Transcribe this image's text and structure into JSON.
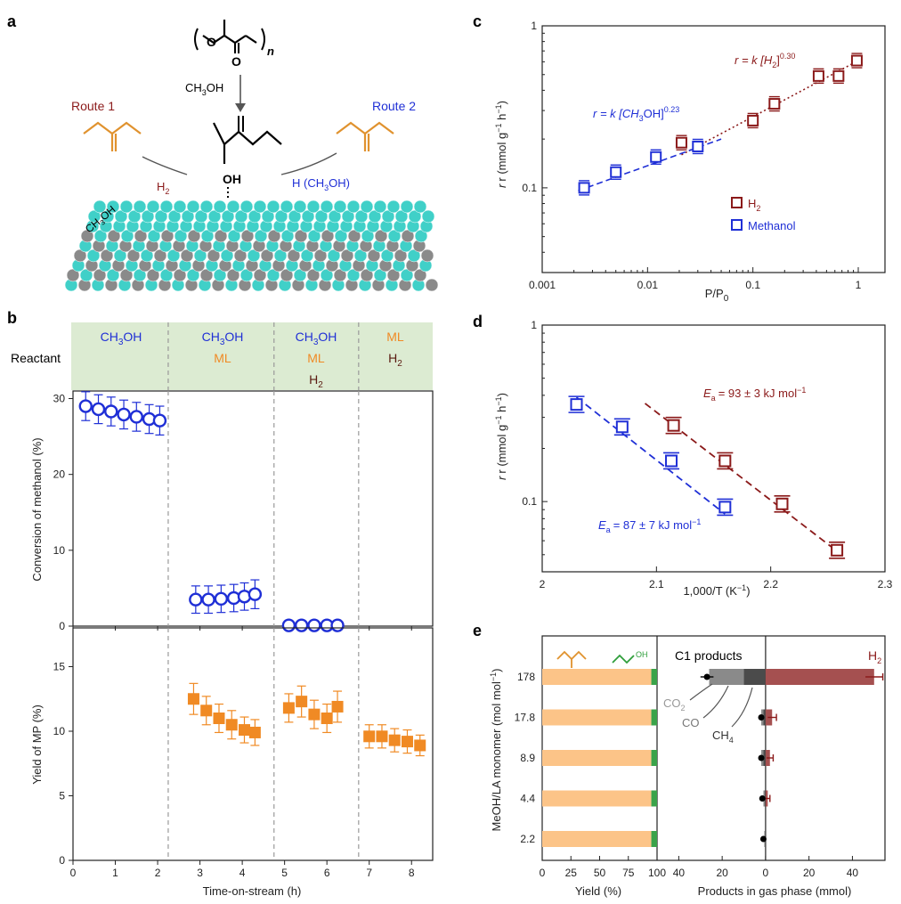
{
  "panels": {
    "a": {
      "letter": "a",
      "route1": "Route 1",
      "route2": "Route 2",
      "ch3oh": "CH",
      "h2": "H",
      "h_ch3oh": "H (CH",
      "oh": "OH",
      "o": "O",
      "n": "n",
      "colors": {
        "route1": "#8b1a1a",
        "route2": "#1f2fd6",
        "ester": "#e0922e",
        "surface": "#40d0c8",
        "atom": "#8a8a8a"
      }
    },
    "b": {
      "letter": "b",
      "reactant_label": "Reactant",
      "reactant_groups": [
        {
          "lines": [
            "CH3OH"
          ]
        },
        {
          "lines": [
            "CH3OH",
            "ML"
          ]
        },
        {
          "lines": [
            "CH3OH",
            "ML",
            "H2"
          ]
        },
        {
          "lines": [
            "ML",
            "H2"
          ]
        }
      ],
      "top_ylabel": "Conversion of methanol (%)",
      "bottom_ylabel": "Yield of MP (%)",
      "xlabel": "Time-on-stream (h)"
    },
    "c": {
      "letter": "c",
      "xlabel": "P/P",
      "xlabel_sub": "0",
      "ylabel": "r (mmol g",
      "eq_h2": "r = k [H",
      "eq_h2_exp": "0.30",
      "eq_meoh": "r = k [CH",
      "eq_meoh_exp": "0.23",
      "legend": [
        "H2",
        "Methanol"
      ]
    },
    "d": {
      "letter": "d",
      "xlabel": "1,000/T (K",
      "ylabel": "r (mmol g",
      "ea_h2": "= 93 ± 3 kJ mol",
      "ea_meoh": "= 87 ± 7 kJ mol"
    },
    "e": {
      "letter": "e",
      "ylabel": "MeOH/LA monomer (mol mol",
      "xlabel_left": "Yield (%)",
      "xlabel_right": "Products in gas phase (mmol)",
      "c1_label": "C1 products",
      "h2_label": "H",
      "co2_label": "CO",
      "co_label": "CO",
      "ch4_label": "CH"
    }
  },
  "chart_data": [
    {
      "id": "b-top",
      "type": "scatter",
      "ylabel": "Conversion of methanol (%)",
      "xlim": [
        0,
        8.5
      ],
      "ylim": [
        0,
        31
      ],
      "xticks": [
        0,
        1,
        2,
        3,
        4,
        5,
        6,
        7,
        8
      ],
      "yticks": [
        0,
        10,
        20,
        30
      ],
      "phase_dividers": [
        2.25,
        4.75,
        6.75
      ],
      "series": [
        {
          "color": "#1f2fd6",
          "x": [
            0.3,
            0.6,
            0.9,
            1.2,
            1.5,
            1.8,
            2.05,
            2.9,
            3.2,
            3.5,
            3.8,
            4.05,
            4.3,
            5.1,
            5.4,
            5.7,
            6.0,
            6.25
          ],
          "y": [
            29,
            28.6,
            28.3,
            27.9,
            27.6,
            27.3,
            27.1,
            3.5,
            3.5,
            3.6,
            3.7,
            3.9,
            4.2,
            0.1,
            0.1,
            0.1,
            0.1,
            0.1
          ],
          "err": [
            1.9,
            1.9,
            1.9,
            1.9,
            1.9,
            1.9,
            1.9,
            1.8,
            1.8,
            1.8,
            1.8,
            1.8,
            1.9,
            0,
            0,
            0,
            0,
            0
          ]
        }
      ]
    },
    {
      "id": "b-bottom",
      "type": "scatter",
      "ylabel": "Yield of MP (%)",
      "xlabel": "Time-on-stream (h)",
      "xlim": [
        0,
        8.5
      ],
      "ylim": [
        0,
        18
      ],
      "xticks": [
        0,
        1,
        2,
        3,
        4,
        5,
        6,
        7,
        8
      ],
      "yticks": [
        0,
        5,
        10,
        15
      ],
      "series": [
        {
          "color": "#f08a24",
          "x": [
            2.85,
            3.15,
            3.45,
            3.75,
            4.05,
            4.3,
            5.1,
            5.4,
            5.7,
            6.0,
            6.25,
            7.0,
            7.3,
            7.6,
            7.9,
            8.2
          ],
          "y": [
            12.5,
            11.6,
            11.0,
            10.5,
            10.1,
            9.9,
            11.8,
            12.3,
            11.3,
            11.0,
            11.9,
            9.6,
            9.6,
            9.3,
            9.2,
            8.9
          ],
          "err": [
            1.2,
            1.1,
            1.1,
            1.1,
            1.0,
            1.0,
            1.1,
            1.2,
            1.1,
            1.1,
            1.2,
            0.9,
            0.9,
            0.9,
            0.9,
            0.8
          ]
        }
      ]
    },
    {
      "id": "c",
      "type": "scatter",
      "xscale": "log",
      "yscale": "log",
      "xlabel": "P/P0",
      "xlim": [
        0.001,
        1
      ],
      "ylim": [
        0.03,
        1
      ],
      "xticks": [
        "0.001",
        "0.01",
        "0.1",
        "1"
      ],
      "yticks": [
        "0.1",
        "1"
      ],
      "series": [
        {
          "name": "H2",
          "color": "#8b1a1a",
          "x": [
            0.021,
            0.1,
            0.16,
            0.42,
            0.65,
            0.97
          ],
          "y": [
            0.19,
            0.26,
            0.33,
            0.49,
            0.49,
            0.61
          ],
          "fit": [
            [
              0.021,
              0.16
            ],
            [
              1.0,
              0.61
            ]
          ]
        },
        {
          "name": "Methanol",
          "color": "#1f2fd6",
          "x": [
            0.0025,
            0.005,
            0.012,
            0.03
          ],
          "y": [
            0.1,
            0.125,
            0.155,
            0.18
          ],
          "fit": [
            [
              0.0022,
              0.096
            ],
            [
              0.05,
              0.2
            ]
          ]
        }
      ]
    },
    {
      "id": "d",
      "type": "scatter",
      "yscale": "log",
      "xlabel": "1,000/T (K-1)",
      "xlim": [
        2.0,
        2.3
      ],
      "ylim": [
        0.04,
        1
      ],
      "xticks": [
        "2",
        "2.1",
        "2.2",
        "2.3"
      ],
      "yticks": [
        "0.1",
        "1"
      ],
      "series": [
        {
          "name": "H2",
          "color": "#8b1a1a",
          "x": [
            2.115,
            2.16,
            2.21,
            2.258
          ],
          "y": [
            0.27,
            0.17,
            0.097,
            0.053
          ],
          "fit": [
            [
              2.09,
              0.36
            ],
            [
              2.262,
              0.05
            ]
          ]
        },
        {
          "name": "Methanol",
          "color": "#1f2fd6",
          "x": [
            2.03,
            2.07,
            2.113,
            2.16
          ],
          "y": [
            0.355,
            0.265,
            0.17,
            0.093
          ],
          "fit": [
            [
              2.03,
              0.39
            ],
            [
              2.16,
              0.085
            ]
          ]
        }
      ]
    },
    {
      "id": "e",
      "type": "bar",
      "categories": [
        "178",
        "17.8",
        "8.9",
        "4.4",
        "2.2"
      ],
      "yield_xlim": [
        0,
        100
      ],
      "yield_xticks": [
        0,
        25,
        50,
        75,
        100
      ],
      "yield_mp": [
        95,
        95,
        95,
        95,
        95
      ],
      "yield_other": [
        5,
        5,
        5,
        5,
        5
      ],
      "gas_xlim": [
        -50,
        55
      ],
      "gas_xticks": [
        "40",
        "20",
        "0",
        "20",
        "40"
      ],
      "h2": [
        50,
        3,
        2,
        1,
        0
      ],
      "h2_err": [
        4,
        2,
        1.5,
        1,
        0
      ],
      "co2": [
        26,
        1.5,
        1.3,
        1,
        0.5
      ],
      "co": [
        16,
        1,
        1,
        0.5,
        0.3
      ],
      "ch4": [
        10,
        1,
        1,
        0.5,
        0.3
      ],
      "c1_points": [
        27,
        2,
        2,
        1.5,
        1
      ],
      "c1_err": [
        3,
        1,
        1,
        0.8,
        0.5
      ],
      "colors": {
        "mp": "#fcc488",
        "other": "#3aa34a",
        "h2": "#a55050",
        "co2": "#c7c7c7",
        "co": "#8a8a8a",
        "ch4": "#4b4b4b"
      }
    }
  ]
}
